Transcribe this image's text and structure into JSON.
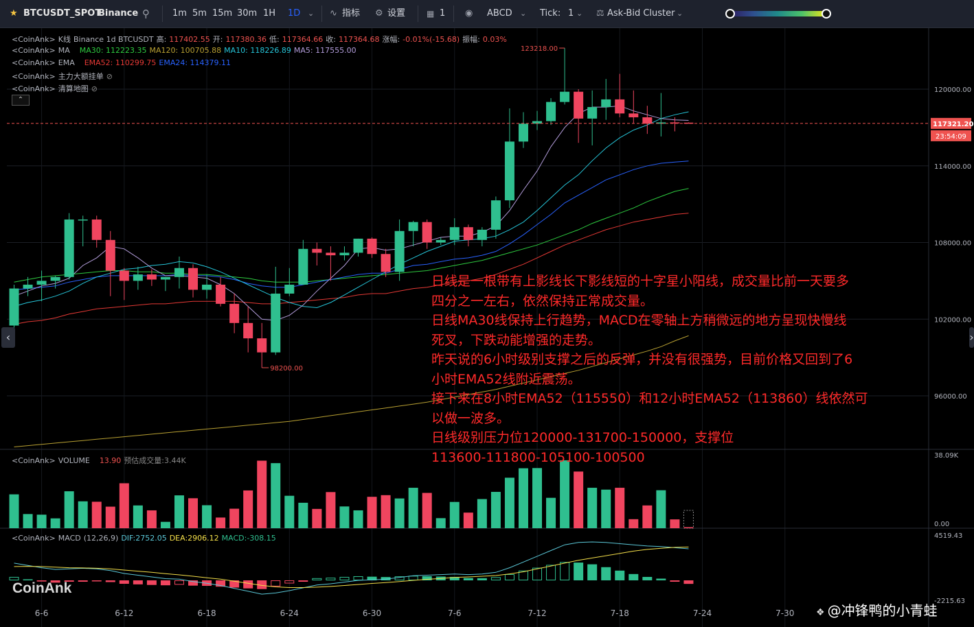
{
  "toolbar": {
    "symbol": "BTCUSDT_SPOT",
    "exchange": "Binance",
    "intervals": [
      "1m",
      "5m",
      "15m",
      "30m",
      "1H",
      "1D"
    ],
    "active_interval": "1D",
    "indicators_label": "指标",
    "settings_label": "设置",
    "layout_count": "1",
    "abcd_label": "ABCD",
    "tick_label": "Tick:",
    "tick_value": "1",
    "cluster_label": "Ask-Bid Cluster"
  },
  "legends": {
    "kline": {
      "prefix": "<CoinAnk>",
      "name": "K线",
      "info": "Binance 1d BTCUSDT",
      "high_label": "高:",
      "high": "117402.55",
      "open_label": "开:",
      "open": "117380.36",
      "low_label": "低:",
      "low": "117364.66",
      "close_label": "收:",
      "close": "117364.68",
      "chg_label": "涨幅:",
      "chg": "-0.01%(-15.68)",
      "amp_label": "振幅:",
      "amp": "0.03%"
    },
    "ma": {
      "prefix": "<CoinAnk>",
      "name": "MA",
      "ma30": "MA30: 112223.35",
      "ma120": "MA120: 100705.88",
      "ma10": "MA10: 118226.89",
      "ma5": "MA5: 117555.00"
    },
    "ema": {
      "prefix": "<CoinAnk>",
      "name": "EMA",
      "ema52": "EMA52: 110299.75",
      "ema24": "EMA24: 114379.11"
    },
    "big_orders": {
      "prefix": "<CoinAnk>",
      "name": "主力大额挂单"
    },
    "liq_map": {
      "prefix": "<CoinAnk>",
      "name": "清算地图"
    },
    "volume": {
      "prefix": "<CoinAnk>",
      "name": "VOLUME",
      "value": "13.90",
      "forecast": "预估成交量:3.44K"
    },
    "macd": {
      "prefix": "<CoinAnk>",
      "name": "MACD",
      "params": "(12,26,9)",
      "dif": "DIF:2752.05",
      "dea": "DEA:2906.12",
      "macd": "MACD:-308.15"
    }
  },
  "price_axis": {
    "labels": [
      "120000.00",
      "114000.00",
      "108000.00",
      "102000.00",
      "96000.00"
    ],
    "current_price": "117321.20",
    "countdown": "23:54:09",
    "high_marker": "123218.00",
    "low_marker": "98200.00",
    "volume_max": "38.09K",
    "volume_min": "0.00",
    "macd_max": "4519.43",
    "macd_min": "-2215.63"
  },
  "date_labels": [
    "6-6",
    "6-12",
    "6-18",
    "6-24",
    "6-30",
    "7-6",
    "7-12",
    "7-18",
    "7-24",
    "7-30"
  ],
  "annotation": [
    "日线是一根带有上影线长下影线短的十字星小阳线，成交量比前一天要多",
    "四分之一左右，依然保持正常成交量。",
    "日线MA30线保持上行趋势，MACD在零轴上方稍微远的地方呈现快慢线",
    "死叉，下跌动能增强的走势。",
    "昨天说的6小时级别支撑之后的反弹，并没有很强势，目前价格又回到了6",
    "小时EMA52线附近震荡。",
    "接下来在8小时EMA52（115550）和12小时EMA52（113860）线依然可",
    "以做一波多。",
    "日线级别压力位120000-131700-150000，支撑位",
    "113600-111800-105100-100500"
  ],
  "watermark": "CoinAnk",
  "credit": "@冲锋鸭的小青蛙",
  "colors": {
    "up": "#26a69a",
    "up_bright": "#2fbf8f",
    "down": "#ef5350",
    "down_bright": "#f0455f",
    "ma5": "#b39ddb",
    "ma10": "#26c6da",
    "ma30": "#2ecc40",
    "ma120": "#b8a032",
    "ema24": "#2962ff",
    "ema52": "#e53935",
    "dif": "#5bc8d8",
    "dea": "#f5e04a"
  },
  "chart_data": {
    "type": "candlestick",
    "title": "BTCUSDT 1D",
    "dates": [
      "6-4",
      "6-5",
      "6-6",
      "6-7",
      "6-8",
      "6-9",
      "6-10",
      "6-11",
      "6-12",
      "6-13",
      "6-14",
      "6-15",
      "6-16",
      "6-17",
      "6-18",
      "6-19",
      "6-20",
      "6-21",
      "6-22",
      "6-23",
      "6-24",
      "6-25",
      "6-26",
      "6-27",
      "6-28",
      "6-29",
      "6-30",
      "7-1",
      "7-2",
      "7-3",
      "7-4",
      "7-5",
      "7-6",
      "7-7",
      "7-8",
      "7-9",
      "7-10",
      "7-11",
      "7-12",
      "7-13",
      "7-14",
      "7-15",
      "7-16",
      "7-17",
      "7-18",
      "7-19",
      "7-20",
      "7-21",
      "7-22",
      "7-23"
    ],
    "ohlc": [
      [
        101500,
        104700,
        101300,
        104400
      ],
      [
        104400,
        105300,
        103800,
        104700
      ],
      [
        104700,
        105800,
        103400,
        105000
      ],
      [
        105000,
        105400,
        104400,
        105300
      ],
      [
        105300,
        110300,
        105100,
        109800
      ],
      [
        109800,
        110100,
        107700,
        109800
      ],
      [
        109800,
        110100,
        107600,
        108200
      ],
      [
        108200,
        108900,
        103800,
        105800
      ],
      [
        105800,
        106000,
        103500,
        105000
      ],
      [
        105000,
        106100,
        104300,
        105500
      ],
      [
        105500,
        105900,
        104600,
        105100
      ],
      [
        105100,
        105300,
        104200,
        105300
      ],
      [
        105300,
        106900,
        104400,
        106000
      ],
      [
        106000,
        106300,
        103700,
        104300
      ],
      [
        104300,
        105500,
        103600,
        104700
      ],
      [
        104700,
        105300,
        103000,
        103200
      ],
      [
        103200,
        104000,
        100900,
        101700
      ],
      [
        101700,
        103000,
        99400,
        100500
      ],
      [
        100500,
        101700,
        98200,
        99400
      ],
      [
        99400,
        106100,
        99200,
        104000
      ],
      [
        104000,
        106000,
        103800,
        104700
      ],
      [
        104700,
        108200,
        104700,
        107500
      ],
      [
        107500,
        108000,
        106200,
        107200
      ],
      [
        107200,
        107700,
        105000,
        107000
      ],
      [
        107000,
        107700,
        106600,
        107200
      ],
      [
        107200,
        108300,
        106900,
        108300
      ],
      [
        108300,
        108400,
        106800,
        107100
      ],
      [
        107100,
        107500,
        105300,
        105700
      ],
      [
        105700,
        109800,
        105000,
        108900
      ],
      [
        108900,
        109700,
        107700,
        109600
      ],
      [
        109600,
        109800,
        107500,
        108000
      ],
      [
        108000,
        108400,
        107800,
        108200
      ],
      [
        108200,
        109900,
        107800,
        109200
      ],
      [
        109200,
        109400,
        107700,
        108200
      ],
      [
        108200,
        109200,
        107700,
        109000
      ],
      [
        109000,
        111600,
        108300,
        111300
      ],
      [
        111300,
        118500,
        110700,
        115900
      ],
      [
        115900,
        118200,
        115400,
        117300
      ],
      [
        117300,
        118300,
        116800,
        117500
      ],
      [
        117500,
        119300,
        117200,
        119000
      ],
      [
        119000,
        123218,
        118800,
        119800
      ],
      [
        119800,
        120000,
        115800,
        117700
      ],
      [
        117700,
        119900,
        115600,
        118600
      ],
      [
        118600,
        120800,
        117600,
        119200
      ],
      [
        119200,
        121200,
        117800,
        118100
      ],
      [
        118100,
        119900,
        117300,
        117800
      ],
      [
        117800,
        118700,
        116500,
        117300
      ],
      [
        117300,
        119700,
        116300,
        117400
      ],
      [
        117400,
        117800,
        116700,
        117380
      ],
      [
        117380,
        117402,
        117364,
        117365
      ]
    ],
    "volume": [
      16.5,
      6.9,
      6.6,
      4.8,
      18.0,
      13.1,
      12.9,
      10.5,
      21.9,
      11.1,
      8.7,
      3.1,
      16.0,
      14.6,
      11.2,
      5.2,
      9.5,
      18.4,
      32.9,
      31.7,
      15.8,
      12.4,
      9.4,
      17.6,
      10.6,
      8.7,
      15.3,
      16.1,
      14.5,
      19.7,
      17.2,
      4.9,
      12.8,
      7.6,
      14.2,
      17.7,
      24.6,
      29.2,
      29.3,
      14.8,
      33.1,
      27.6,
      19.7,
      18.8,
      19.7,
      4.4,
      11.1,
      18.5,
      4.3,
      0.0139
    ],
    "ma5": [
      103800,
      104200,
      104600,
      104800,
      105200,
      106200,
      106800,
      107700,
      107500,
      106800,
      106000,
      105400,
      105400,
      105300,
      105200,
      104700,
      104000,
      103000,
      102000,
      101900,
      102300,
      103100,
      104200,
      105200,
      106200,
      107500,
      107600,
      107400,
      107500,
      107800,
      108100,
      108400,
      108500,
      108500,
      108800,
      109300,
      110500,
      112100,
      113600,
      115500,
      117000,
      118100,
      118600,
      118600,
      118700,
      118300,
      118000,
      117700,
      117600,
      117555
    ],
    "ma10": [
      103000,
      103300,
      103500,
      103800,
      104200,
      104800,
      105300,
      105600,
      105900,
      106000,
      106200,
      106300,
      106500,
      106400,
      106100,
      105700,
      105200,
      104700,
      104200,
      103700,
      103300,
      103000,
      102900,
      103300,
      103900,
      104500,
      105100,
      105700,
      106300,
      106800,
      107300,
      107700,
      108100,
      108200,
      108300,
      108500,
      109000,
      109600,
      110500,
      111500,
      112500,
      113300,
      114400,
      115400,
      116200,
      116800,
      117200,
      117700,
      118000,
      118227
    ],
    "ma30": [
      104900,
      105100,
      105300,
      105400,
      105500,
      105600,
      105700,
      105800,
      105800,
      105700,
      105700,
      105600,
      105600,
      105500,
      105500,
      105400,
      105300,
      105200,
      105000,
      104900,
      104900,
      104900,
      105000,
      105100,
      105200,
      105300,
      105400,
      105500,
      105600,
      105700,
      105800,
      106000,
      106200,
      106400,
      106600,
      106900,
      107200,
      107500,
      107800,
      108200,
      108600,
      109000,
      109500,
      109900,
      110300,
      110700,
      111200,
      111600,
      112000,
      112223
    ],
    "ma120": [
      92000,
      92100,
      92200,
      92300,
      92400,
      92500,
      92600,
      92700,
      92800,
      92900,
      93000,
      93100,
      93200,
      93300,
      93400,
      93500,
      93600,
      93700,
      93800,
      93900,
      94000,
      94150,
      94300,
      94450,
      94600,
      94750,
      94900,
      95050,
      95200,
      95350,
      95500,
      95700,
      95900,
      96100,
      96300,
      96500,
      96750,
      97000,
      97250,
      97500,
      97750,
      98000,
      98300,
      98600,
      98900,
      99200,
      99500,
      99850,
      100300,
      100706
    ],
    "ema24": [
      104300,
      104400,
      104500,
      104600,
      104900,
      105100,
      105300,
      105400,
      105400,
      105400,
      105400,
      105400,
      105500,
      105400,
      105400,
      105300,
      105100,
      104800,
      104600,
      104500,
      104500,
      104700,
      104900,
      105100,
      105300,
      105500,
      105600,
      105600,
      105900,
      106200,
      106300,
      106500,
      106700,
      106800,
      107000,
      107300,
      107900,
      108600,
      109400,
      110200,
      111100,
      111700,
      112300,
      112900,
      113300,
      113700,
      114000,
      114200,
      114300,
      114379
    ],
    "ema52": [
      101600,
      101800,
      101900,
      102100,
      102400,
      102600,
      102800,
      102900,
      103000,
      103100,
      103200,
      103200,
      103300,
      103400,
      103400,
      103400,
      103400,
      103300,
      103200,
      103200,
      103300,
      103400,
      103500,
      103600,
      103700,
      103900,
      104000,
      104000,
      104200,
      104400,
      104500,
      104700,
      104900,
      105000,
      105200,
      105500,
      105900,
      106300,
      106800,
      107300,
      107800,
      108200,
      108600,
      109000,
      109300,
      109600,
      109800,
      110000,
      110200,
      110300
    ],
    "macd_dif": [
      1500,
      1300,
      1100,
      950,
      1000,
      1050,
      1000,
      850,
      600,
      450,
      300,
      150,
      100,
      -100,
      -250,
      -450,
      -700,
      -950,
      -1200,
      -1100,
      -900,
      -650,
      -400,
      -300,
      -150,
      0,
      50,
      100,
      250,
      400,
      450,
      500,
      550,
      500,
      550,
      700,
      1100,
      1600,
      2100,
      2600,
      3100,
      3300,
      3350,
      3300,
      3200,
      3100,
      3000,
      2950,
      2850,
      2752
    ],
    "macd_dea": [
      1200,
      1220,
      1200,
      1150,
      1100,
      1080,
      1050,
      1000,
      900,
      800,
      700,
      580,
      480,
      360,
      230,
      100,
      -70,
      -250,
      -440,
      -570,
      -630,
      -630,
      -590,
      -530,
      -450,
      -360,
      -270,
      -190,
      -100,
      0,
      90,
      170,
      250,
      300,
      360,
      420,
      560,
      750,
      1000,
      1250,
      1500,
      1750,
      1950,
      2150,
      2350,
      2550,
      2700,
      2800,
      2880,
      2906
    ],
    "macd_hist": [
      300,
      80,
      -100,
      -200,
      -100,
      -30,
      -50,
      -150,
      -300,
      -350,
      -400,
      -430,
      -380,
      -460,
      -480,
      -550,
      -630,
      -700,
      -760,
      -530,
      -270,
      -20,
      190,
      230,
      300,
      360,
      320,
      290,
      350,
      400,
      360,
      330,
      300,
      200,
      190,
      280,
      540,
      850,
      1100,
      1350,
      1600,
      1550,
      1400,
      1150,
      850,
      550,
      300,
      150,
      -30,
      -308
    ],
    "ylim": [
      92000,
      125500
    ]
  }
}
